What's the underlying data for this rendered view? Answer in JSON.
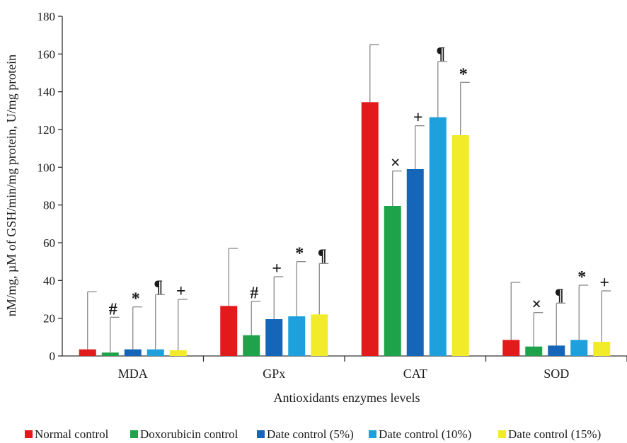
{
  "chart_data": {
    "type": "bar",
    "title": "",
    "xlabel": "Antioxidants enzymes levels",
    "ylabel": "nM/mg, µM of GSH/min/mg protein, U/mg protein",
    "ylim": [
      0,
      180
    ],
    "yticks": [
      0,
      20,
      40,
      60,
      80,
      100,
      120,
      140,
      160,
      180
    ],
    "grid": false,
    "legend_position": "bottom",
    "categories": [
      "MDA",
      "GPx",
      "CAT",
      "SOD"
    ],
    "series": [
      {
        "name": "Normal control",
        "color": "#e31a1c",
        "values": [
          3.5,
          26.5,
          134.5,
          8.5
        ],
        "err_upper": [
          34,
          57,
          165,
          39
        ],
        "markers": [
          "",
          "",
          "",
          ""
        ]
      },
      {
        "name": "Doxorubicin control",
        "color": "#1fa34a",
        "values": [
          1.8,
          11,
          79.5,
          5
        ],
        "err_upper": [
          20.5,
          29,
          98,
          23
        ],
        "markers": [
          "#",
          "#",
          "×",
          "×"
        ]
      },
      {
        "name": "Date control (5%)",
        "color": "#1565b8",
        "values": [
          3.5,
          19.5,
          99,
          5.5
        ],
        "err_upper": [
          26,
          42,
          122,
          28
        ],
        "markers": [
          "*",
          "+",
          "+",
          "¶"
        ]
      },
      {
        "name": "Date control (10%)",
        "color": "#1ea0dc",
        "values": [
          3.5,
          21,
          126.5,
          8.5
        ],
        "err_upper": [
          32.5,
          50,
          156,
          37.5
        ],
        "markers": [
          "¶",
          "*",
          "¶",
          "*"
        ]
      },
      {
        "name": "Date control (15%)",
        "color": "#f2eb2a",
        "values": [
          3,
          22,
          117,
          7.5
        ],
        "err_upper": [
          30,
          49,
          145,
          34.5
        ],
        "markers": [
          "+",
          "¶",
          "*",
          "+"
        ]
      }
    ]
  }
}
